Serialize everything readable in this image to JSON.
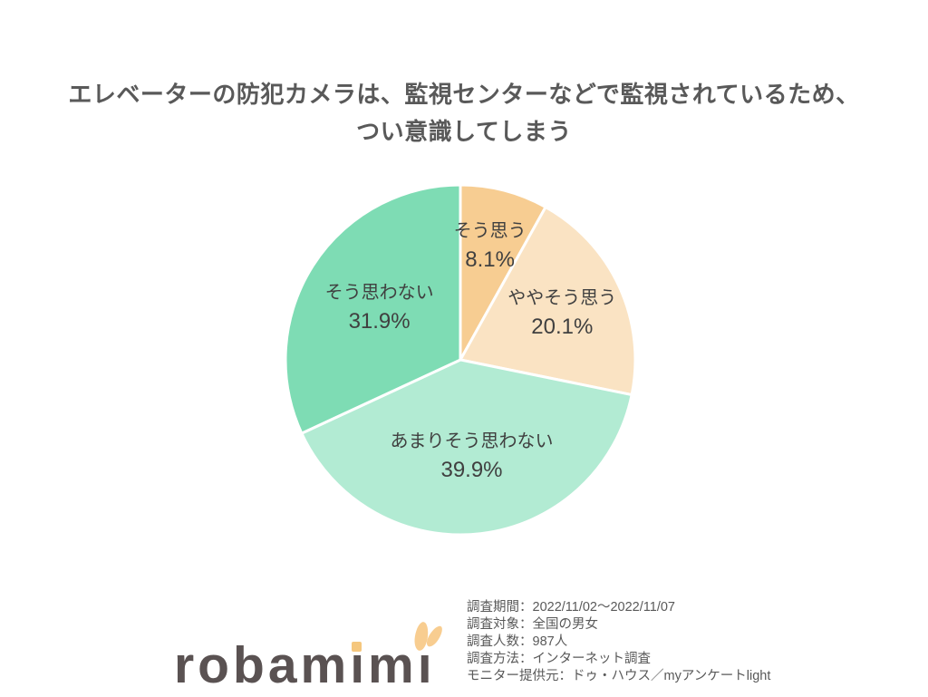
{
  "title": {
    "lines": [
      "エレベーターの防犯カメラは、監視センターなどで監視されているため、",
      "つい意識してしまう"
    ]
  },
  "chart_data": {
    "type": "pie",
    "title": "エレベーターの防犯カメラは、監視センターなどで監視されているため、つい意識してしまう",
    "unit": "%",
    "start_angle_deg": 0,
    "direction": "clockwise",
    "slice_border_color": "#FFFFFF",
    "legend": "labels-inside-slices",
    "slices": [
      {
        "label": "そう思う",
        "value": 8.1,
        "display": "8.1%",
        "color": "#F7CD92",
        "label_r": 0.67
      },
      {
        "label": "ややそう思う",
        "value": 20.1,
        "display": "20.1%",
        "color": "#FAE3C3",
        "label_r": 0.64
      },
      {
        "label": "あまりそう思わない",
        "value": 39.9,
        "display": "39.9%",
        "color": "#B2EBD3",
        "label_r": 0.56
      },
      {
        "label": "そう思わない",
        "value": 31.9,
        "display": "31.9%",
        "color": "#7EDCB4",
        "label_r": 0.55
      }
    ]
  },
  "survey": {
    "lines": [
      "調査期間：2022/11/02～2022/11/07",
      "調査対象：全国の男女",
      "調査人数：987人",
      "調査方法：インターネット調査",
      "モニター提供元：ドゥ・ハウス／myアンケートlight"
    ]
  },
  "logo": {
    "text": "robamimi",
    "parts": [
      "robam",
      "ı",
      "m",
      "ı"
    ]
  },
  "colors": {
    "background": "#FFFFFF",
    "title": "#595959",
    "label": "#404040",
    "survey_text": "#595959",
    "logo_text": "#5A5252",
    "logo_accent": "#F5C77E",
    "ear": "#F8CD90"
  }
}
